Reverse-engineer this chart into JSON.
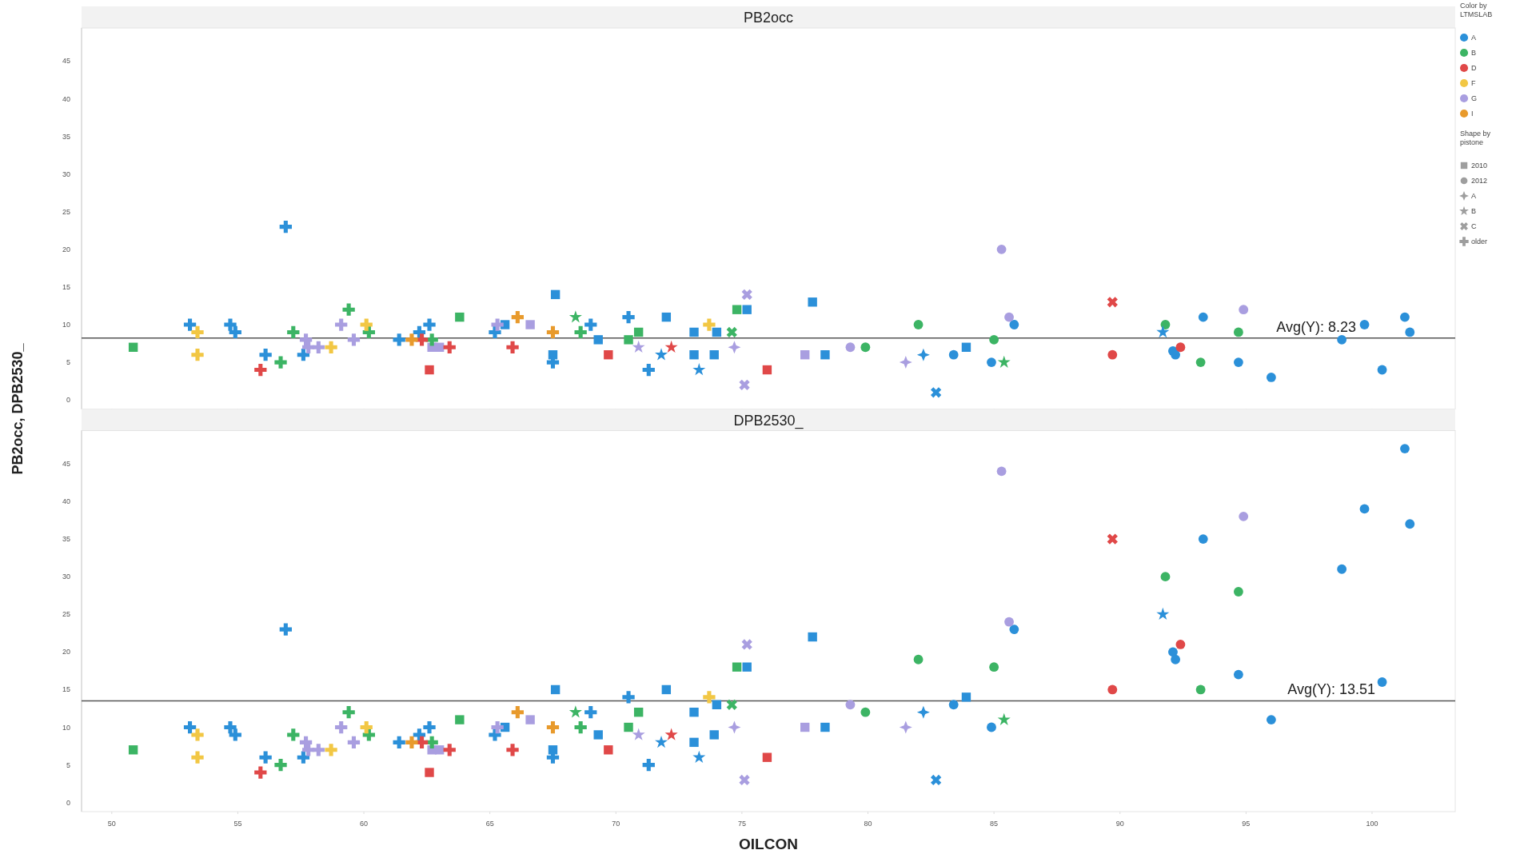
{
  "chart_data": [
    {
      "type": "scatter",
      "title": "PB2occ",
      "ylabel": "PB2occ, DPB2530_",
      "xlim": [
        48.8,
        103.3
      ],
      "xticks": [
        50,
        55,
        60,
        65,
        70,
        75,
        80,
        85,
        90,
        95,
        100
      ],
      "ylim": [
        -1.2,
        49.4
      ],
      "yticks": [
        0,
        5,
        10,
        15,
        20,
        25,
        30,
        35,
        40,
        45
      ],
      "tick_labels": "y",
      "grid": false,
      "legend": "right",
      "legend_title": "Color by LTMSLAB",
      "annotations": [
        "Shape by pistone",
        "2010",
        "2012",
        "A",
        "B",
        "C",
        "older"
      ],
      "ref_lines": [
        {
          "axis": "y",
          "value": 8.23,
          "label": "Avg(Y): 8.23",
          "color": "#555555"
        }
      ],
      "series": [
        {
          "name": "A",
          "color": "#2b90d9",
          "marker": "circle"
        },
        {
          "name": "B",
          "color": "#3cb464",
          "marker": "circle"
        },
        {
          "name": "D",
          "color": "#e04848",
          "marker": "circle"
        },
        {
          "name": "F",
          "color": "#f2c744",
          "marker": "circle"
        },
        {
          "name": "G",
          "color": "#a99ee0",
          "marker": "circle"
        },
        {
          "name": "I",
          "color": "#e89a2c",
          "marker": "circle"
        },
        {
          "color": "#9e9e9e",
          "marker": "square",
          "x": [
            65.6,
            67.6,
            67.5,
            69.3,
            72.0,
            73.1,
            73.1,
            73.9,
            74.0,
            75.2,
            78.3,
            77.8,
            83.9,
            50.85,
            63.8,
            70.5,
            70.9,
            74.8,
            62.6,
            69.7,
            76.0,
            62.7,
            63.0,
            66.6,
            77.5
          ],
          "values": [
            10,
            14,
            6,
            8,
            11,
            9,
            6,
            6,
            9,
            12,
            6,
            13,
            7,
            7,
            11,
            8,
            9,
            12,
            4,
            6,
            4,
            7,
            7,
            10,
            6
          ],
          "colors": [
            "#2b90d9",
            "#2b90d9",
            "#2b90d9",
            "#2b90d9",
            "#2b90d9",
            "#2b90d9",
            "#2b90d9",
            "#2b90d9",
            "#2b90d9",
            "#2b90d9",
            "#2b90d9",
            "#2b90d9",
            "#2b90d9",
            "#3cb464",
            "#3cb464",
            "#3cb464",
            "#3cb464",
            "#3cb464",
            "#e04848",
            "#e04848",
            "#e04848",
            "#a99ee0",
            "#a99ee0",
            "#a99ee0",
            "#a99ee0"
          ]
        },
        {
          "color": "#9e9e9e",
          "marker": "circle",
          "x": [
            83.4,
            84.9,
            85.8,
            92.2,
            92.1,
            93.3,
            94.7,
            96.0,
            98.8,
            99.7,
            100.4,
            101.3,
            101.5,
            79.9,
            82.0,
            85.0,
            91.8,
            93.2,
            94.7,
            89.7,
            92.4,
            79.3,
            85.3,
            85.6,
            94.9
          ],
          "values": [
            6,
            5,
            10,
            6,
            6.5,
            11,
            5,
            3,
            8,
            10,
            4,
            11,
            9,
            7,
            10,
            8,
            10,
            5,
            9,
            6,
            7,
            7,
            20,
            11,
            12
          ],
          "colors": [
            "#2b90d9",
            "#2b90d9",
            "#2b90d9",
            "#2b90d9",
            "#2b90d9",
            "#2b90d9",
            "#2b90d9",
            "#2b90d9",
            "#2b90d9",
            "#2b90d9",
            "#2b90d9",
            "#2b90d9",
            "#2b90d9",
            "#3cb464",
            "#3cb464",
            "#3cb464",
            "#3cb464",
            "#3cb464",
            "#3cb464",
            "#e04848",
            "#e04848",
            "#a99ee0",
            "#a99ee0",
            "#a99ee0",
            "#a99ee0"
          ]
        },
        {
          "color": "#9e9e9e",
          "marker": "diamond",
          "x": [
            82.2,
            74.7,
            81.5
          ],
          "values": [
            6,
            7,
            5
          ],
          "colors": [
            "#2b90d9",
            "#a99ee0",
            "#a99ee0"
          ]
        },
        {
          "color": "#9e9e9e",
          "marker": "star",
          "x": [
            71.8,
            73.3,
            91.7,
            68.4,
            85.4,
            72.2,
            70.9
          ],
          "values": [
            6,
            4,
            9,
            11,
            5,
            7,
            7
          ],
          "colors": [
            "#2b90d9",
            "#2b90d9",
            "#2b90d9",
            "#3cb464",
            "#3cb464",
            "#e04848",
            "#a99ee0"
          ]
        },
        {
          "color": "#9e9e9e",
          "marker": "x",
          "x": [
            82.7,
            74.6,
            89.7,
            75.2,
            75.1
          ],
          "values": [
            1,
            9,
            13,
            14,
            2
          ],
          "colors": [
            "#2b90d9",
            "#3cb464",
            "#e04848",
            "#a99ee0",
            "#a99ee0"
          ]
        },
        {
          "color": "#9e9e9e",
          "marker": "cross",
          "x": [
            53.1,
            54.7,
            54.9,
            56.1,
            56.9,
            57.6,
            61.4,
            62.2,
            62.6,
            65.2,
            67.5,
            69.0,
            70.5,
            71.3,
            56.7,
            57.2,
            59.4,
            60.2,
            62.7,
            68.6,
            55.9,
            62.3,
            63.4,
            65.9,
            53.4,
            53.4,
            58.7,
            60.1,
            73.7,
            57.7,
            57.8,
            58.2,
            59.1,
            59.6,
            65.3,
            61.9,
            66.1,
            67.5
          ],
          "values": [
            10,
            10,
            9,
            6,
            23,
            6,
            8,
            9,
            10,
            9,
            5,
            10,
            11,
            4,
            5,
            9,
            12,
            9,
            8,
            9,
            4,
            8,
            7,
            7,
            9,
            6,
            7,
            10,
            10,
            8,
            7,
            7,
            10,
            8,
            10,
            8,
            11,
            9
          ],
          "colors": [
            "#2b90d9",
            "#2b90d9",
            "#2b90d9",
            "#2b90d9",
            "#2b90d9",
            "#2b90d9",
            "#2b90d9",
            "#2b90d9",
            "#2b90d9",
            "#2b90d9",
            "#2b90d9",
            "#2b90d9",
            "#2b90d9",
            "#2b90d9",
            "#3cb464",
            "#3cb464",
            "#3cb464",
            "#3cb464",
            "#3cb464",
            "#3cb464",
            "#e04848",
            "#e04848",
            "#e04848",
            "#e04848",
            "#f2c744",
            "#f2c744",
            "#f2c744",
            "#f2c744",
            "#f2c744",
            "#a99ee0",
            "#a99ee0",
            "#a99ee0",
            "#a99ee0",
            "#a99ee0",
            "#a99ee0",
            "#e89a2c",
            "#e89a2c",
            "#e89a2c"
          ]
        }
      ]
    },
    {
      "type": "scatter",
      "title": "DPB2530_",
      "xlabel": "OILCON",
      "xlim": [
        48.8,
        103.3
      ],
      "xticks": [
        50,
        55,
        60,
        65,
        70,
        75,
        80,
        85,
        90,
        95,
        100
      ],
      "ylim": [
        -1.2,
        49.4
      ],
      "yticks": [
        0,
        5,
        10,
        15,
        20,
        25,
        30,
        35,
        40,
        45
      ],
      "grid": false,
      "ref_lines": [
        {
          "axis": "y",
          "value": 13.51,
          "label": "Avg(Y): 13.51",
          "color": "#555555"
        }
      ],
      "series": [
        {
          "marker": "square",
          "x": [
            65.6,
            67.6,
            67.5,
            69.3,
            72.0,
            73.1,
            73.1,
            73.9,
            74.0,
            75.2,
            78.3,
            77.8,
            83.9,
            50.85,
            63.8,
            70.5,
            70.9,
            74.8,
            62.6,
            69.7,
            76.0,
            62.7,
            63.0,
            66.6,
            77.5
          ],
          "values": [
            10,
            15,
            7,
            9,
            15,
            12,
            8,
            9,
            13,
            18,
            10,
            22,
            14,
            7,
            11,
            10,
            12,
            18,
            4,
            7,
            6,
            7,
            7,
            11,
            10
          ],
          "colors": [
            "#2b90d9",
            "#2b90d9",
            "#2b90d9",
            "#2b90d9",
            "#2b90d9",
            "#2b90d9",
            "#2b90d9",
            "#2b90d9",
            "#2b90d9",
            "#2b90d9",
            "#2b90d9",
            "#2b90d9",
            "#2b90d9",
            "#3cb464",
            "#3cb464",
            "#3cb464",
            "#3cb464",
            "#3cb464",
            "#e04848",
            "#e04848",
            "#e04848",
            "#a99ee0",
            "#a99ee0",
            "#a99ee0",
            "#a99ee0"
          ]
        },
        {
          "marker": "circle",
          "x": [
            83.4,
            84.9,
            85.8,
            92.2,
            92.1,
            93.3,
            94.7,
            96.0,
            98.8,
            99.7,
            100.4,
            101.3,
            101.5,
            79.9,
            82.0,
            85.0,
            91.8,
            93.2,
            94.7,
            89.7,
            92.4,
            79.3,
            85.3,
            85.6,
            94.9
          ],
          "values": [
            13,
            10,
            23,
            19,
            20,
            35,
            17,
            11,
            31,
            39,
            16,
            47,
            37,
            12,
            19,
            18,
            30,
            15,
            28,
            15,
            21,
            13,
            44,
            24,
            38
          ],
          "colors": [
            "#2b90d9",
            "#2b90d9",
            "#2b90d9",
            "#2b90d9",
            "#2b90d9",
            "#2b90d9",
            "#2b90d9",
            "#2b90d9",
            "#2b90d9",
            "#2b90d9",
            "#2b90d9",
            "#2b90d9",
            "#2b90d9",
            "#3cb464",
            "#3cb464",
            "#3cb464",
            "#3cb464",
            "#3cb464",
            "#3cb464",
            "#e04848",
            "#e04848",
            "#a99ee0",
            "#a99ee0",
            "#a99ee0",
            "#a99ee0"
          ]
        },
        {
          "marker": "diamond",
          "x": [
            82.2,
            74.7,
            81.5
          ],
          "values": [
            12,
            10,
            10
          ],
          "colors": [
            "#2b90d9",
            "#a99ee0",
            "#a99ee0"
          ]
        },
        {
          "marker": "star",
          "x": [
            71.8,
            73.3,
            91.7,
            68.4,
            85.4,
            72.2,
            70.9
          ],
          "values": [
            8,
            6,
            25,
            12,
            11,
            9,
            9
          ],
          "colors": [
            "#2b90d9",
            "#2b90d9",
            "#2b90d9",
            "#3cb464",
            "#3cb464",
            "#e04848",
            "#a99ee0"
          ]
        },
        {
          "marker": "x",
          "x": [
            82.7,
            74.6,
            89.7,
            75.2,
            75.1
          ],
          "values": [
            3,
            13,
            35,
            21,
            3
          ],
          "colors": [
            "#2b90d9",
            "#3cb464",
            "#e04848",
            "#a99ee0",
            "#a99ee0"
          ]
        },
        {
          "marker": "cross",
          "x": [
            53.1,
            54.7,
            54.9,
            56.1,
            56.9,
            57.6,
            61.4,
            62.2,
            62.6,
            65.2,
            67.5,
            69.0,
            70.5,
            71.3,
            56.7,
            57.2,
            59.4,
            60.2,
            62.7,
            68.6,
            55.9,
            62.3,
            63.4,
            65.9,
            53.4,
            53.4,
            58.7,
            60.1,
            73.7,
            57.7,
            57.8,
            58.2,
            59.1,
            59.6,
            65.3,
            61.9,
            66.1,
            67.5
          ],
          "values": [
            10,
            10,
            9,
            6,
            23,
            6,
            8,
            9,
            10,
            9,
            6,
            12,
            14,
            5,
            5,
            9,
            12,
            9,
            8,
            10,
            4,
            8,
            7,
            7,
            9,
            6,
            7,
            10,
            14,
            8,
            7,
            7,
            10,
            8,
            10,
            8,
            12,
            10
          ],
          "colors": [
            "#2b90d9",
            "#2b90d9",
            "#2b90d9",
            "#2b90d9",
            "#2b90d9",
            "#2b90d9",
            "#2b90d9",
            "#2b90d9",
            "#2b90d9",
            "#2b90d9",
            "#2b90d9",
            "#2b90d9",
            "#2b90d9",
            "#2b90d9",
            "#3cb464",
            "#3cb464",
            "#3cb464",
            "#3cb464",
            "#3cb464",
            "#3cb464",
            "#e04848",
            "#e04848",
            "#e04848",
            "#e04848",
            "#f2c744",
            "#f2c744",
            "#f2c744",
            "#f2c744",
            "#f2c744",
            "#a99ee0",
            "#a99ee0",
            "#a99ee0",
            "#a99ee0",
            "#a99ee0",
            "#a99ee0",
            "#e89a2c",
            "#e89a2c",
            "#e89a2c"
          ]
        }
      ]
    }
  ]
}
